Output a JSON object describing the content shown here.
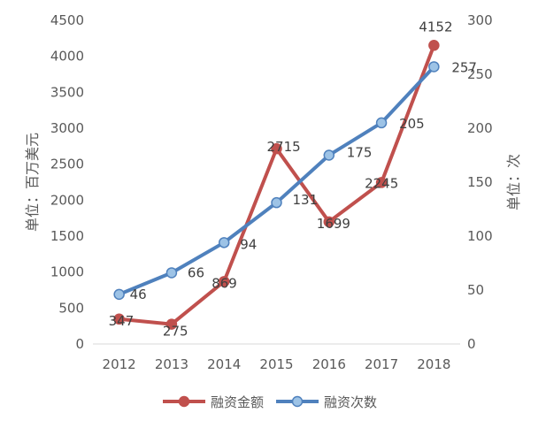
{
  "chart_data": {
    "type": "line",
    "title": "",
    "x": [
      "2012",
      "2013",
      "2014",
      "2015",
      "2016",
      "2017",
      "2018"
    ],
    "y_left": {
      "label": "单位：百万美元",
      "range": [
        0,
        4500
      ],
      "ticks": [
        0,
        500,
        1000,
        1500,
        2000,
        2500,
        3000,
        3500,
        4000,
        4500
      ]
    },
    "y_right": {
      "label": "单位：次",
      "range": [
        0,
        300
      ],
      "ticks": [
        0,
        50,
        100,
        150,
        200,
        250,
        300
      ]
    },
    "grid": false,
    "legend": "bottom",
    "series": [
      {
        "name": "融资金额",
        "axis": "left",
        "color": "#C0504D",
        "values": [
          347,
          275,
          869,
          2715,
          1699,
          2245,
          4152
        ],
        "labels": [
          "347",
          "275",
          "869",
          "2715",
          "1699",
          "2245",
          "4152"
        ]
      },
      {
        "name": "融资次数",
        "axis": "right",
        "color": "#4F81BD",
        "values": [
          46,
          66,
          94,
          131,
          175,
          205,
          257
        ],
        "labels": [
          "46",
          "66",
          "94",
          "131",
          "175",
          "205",
          "257"
        ]
      }
    ]
  }
}
